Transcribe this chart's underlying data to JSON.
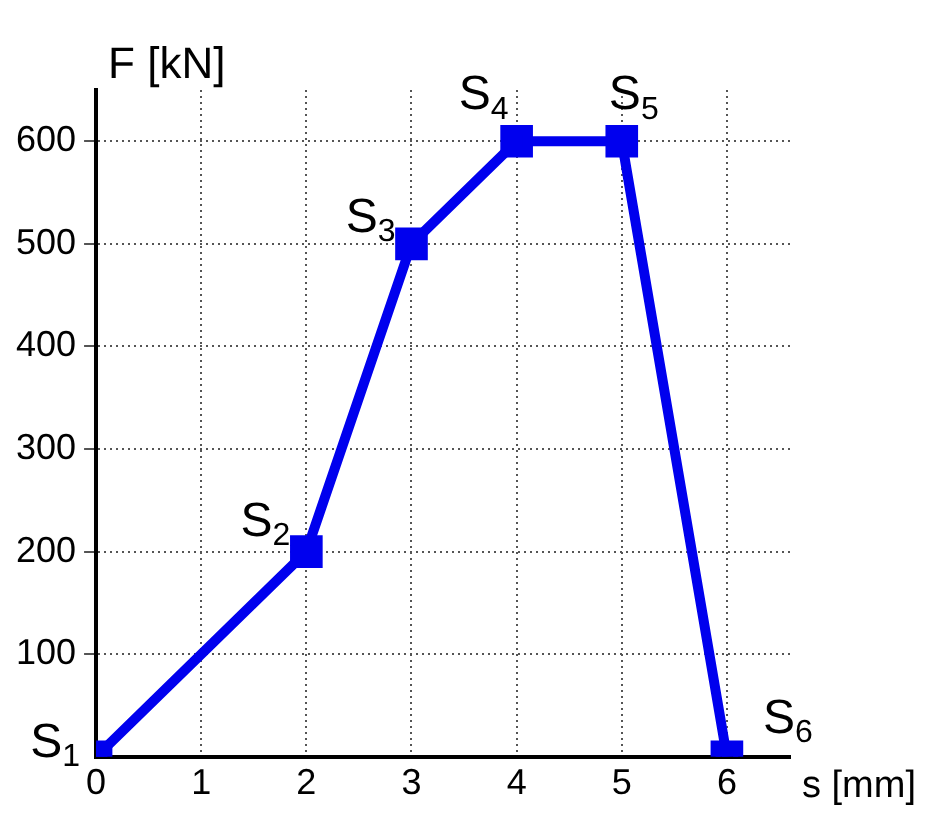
{
  "chart_data": {
    "type": "line",
    "xlabel": "s [mm]",
    "ylabel": "F [kN]",
    "x": [
      0,
      2,
      3,
      4,
      5,
      6
    ],
    "series": [
      {
        "color": "#0000ee",
        "values": [
          0,
          200,
          500,
          600,
          600,
          0
        ]
      }
    ],
    "xlim": [
      0,
      6.6
    ],
    "ylim": [
      0,
      650
    ],
    "xticks": [
      0,
      1,
      2,
      3,
      4,
      5,
      6
    ],
    "yticks": [
      100,
      200,
      300,
      400,
      500,
      600
    ],
    "grid": true,
    "marker": "square",
    "line_style": "solid",
    "legend": false,
    "annotations": [
      {
        "text": "S$_{1}$",
        "x": 0,
        "y": 0
      },
      {
        "text": "S$_{2}$",
        "x": 2,
        "y": 200
      },
      {
        "text": "S$_{3}$",
        "x": 3,
        "y": 500
      },
      {
        "text": "S$_{4}$",
        "x": 4,
        "y": 600
      },
      {
        "text": "S$_{5}$",
        "x": 5,
        "y": 600
      },
      {
        "text": "S$_{6}$",
        "x": 6,
        "y": 0
      }
    ]
  }
}
